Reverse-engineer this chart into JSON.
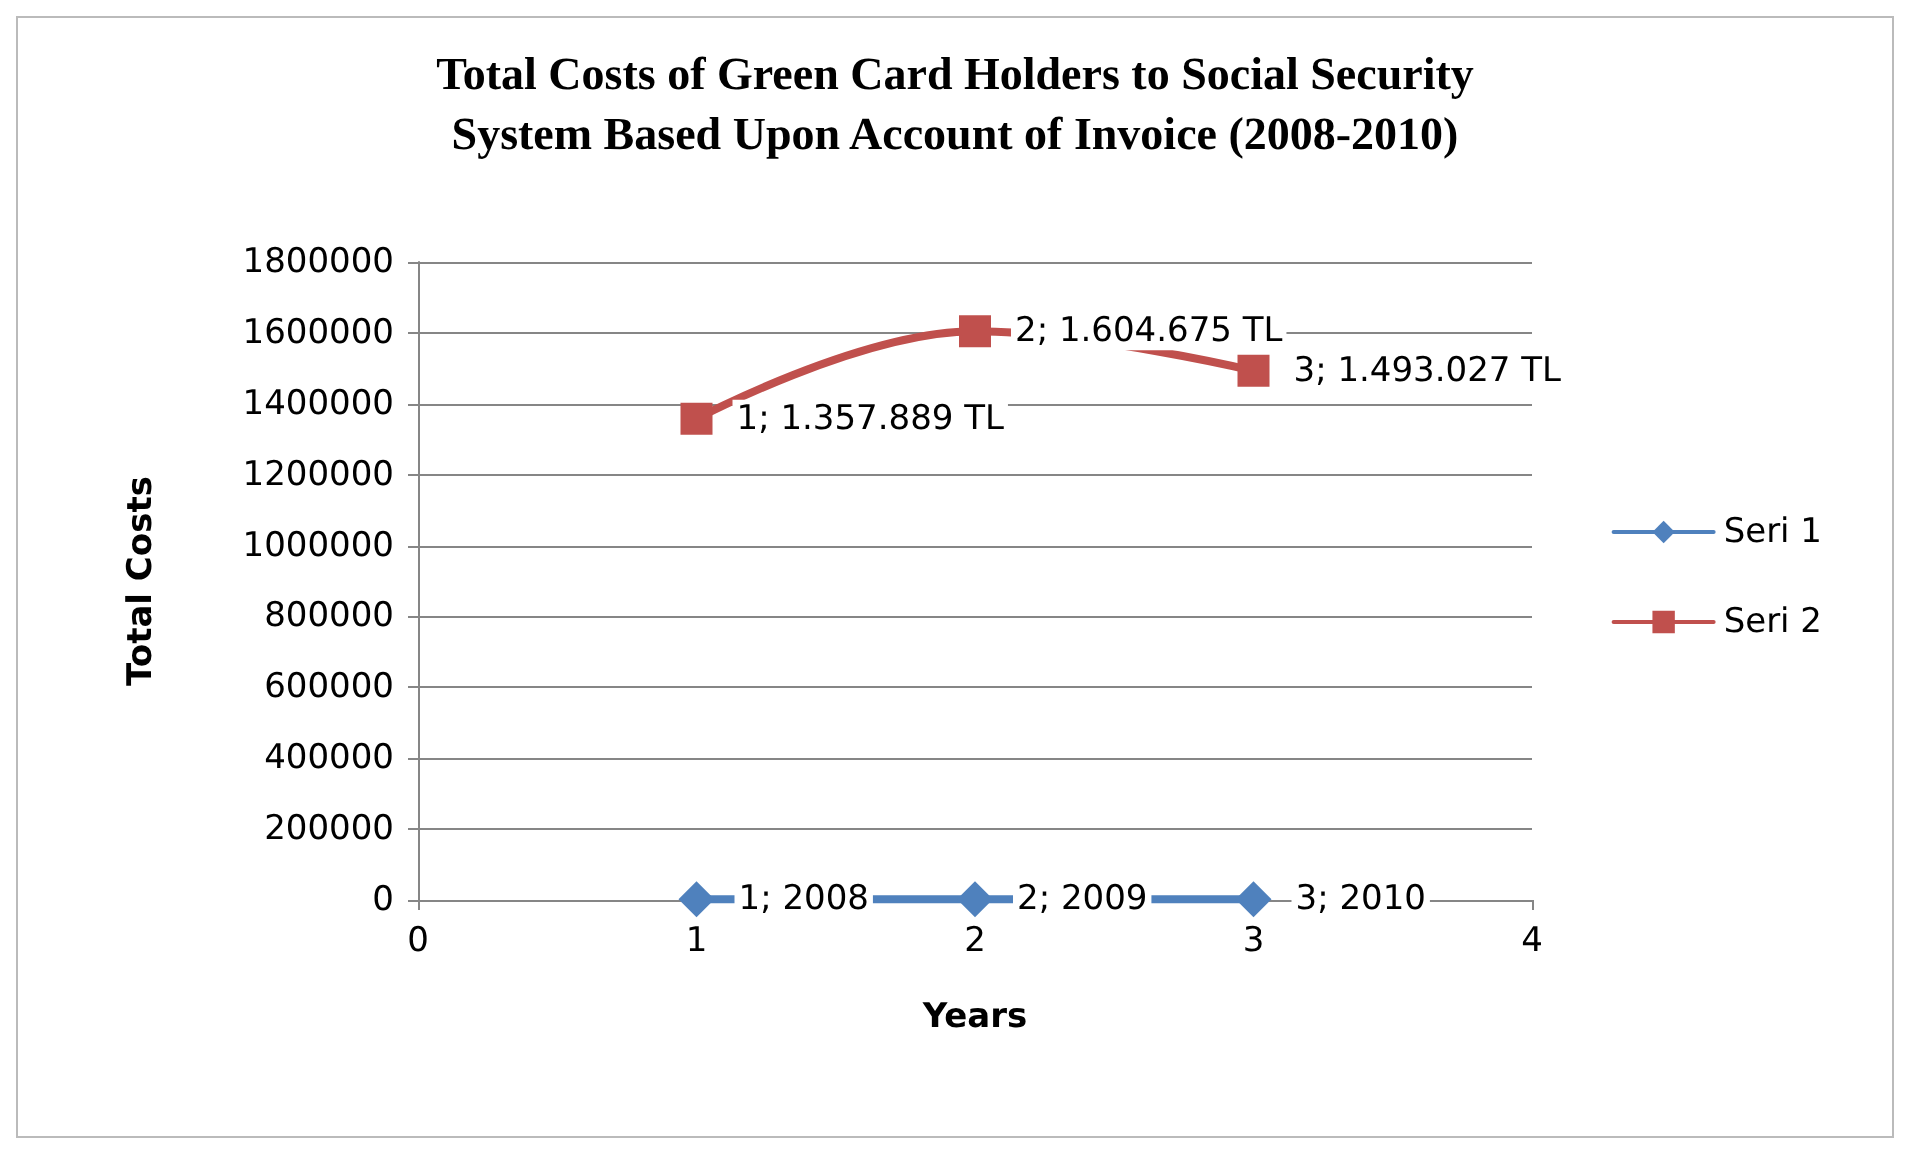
{
  "chart_data": {
    "type": "line",
    "title": "Total Costs of Green Card Holders to Social Security\nSystem Based Upon Account of Invoice (2008-2010)",
    "xlabel": "Years",
    "ylabel": "Total Costs",
    "x": [
      1,
      2,
      3
    ],
    "series": [
      {
        "name": "Seri 1",
        "color": "#4f81bd",
        "marker": "diamond",
        "values": [
          2008,
          2009,
          2010
        ],
        "value_labels": [
          "1; 2008",
          "2; 2009",
          "3; 2010"
        ]
      },
      {
        "name": "Seri 2",
        "color": "#c0504d",
        "marker": "square",
        "values": [
          1357889,
          1604675,
          1493027
        ],
        "value_labels": [
          "1; 1.357.889 TL",
          "2; 1.604.675 TL",
          "3; 1.493.027 TL"
        ]
      }
    ],
    "xlim": [
      0,
      4
    ],
    "xticks": [
      0,
      1,
      2,
      3,
      4
    ],
    "ylim": [
      0,
      1800000
    ],
    "yticks": [
      0,
      200000,
      400000,
      600000,
      800000,
      1000000,
      1200000,
      1400000,
      1600000,
      1800000
    ],
    "grid": "y",
    "legend": "right"
  }
}
